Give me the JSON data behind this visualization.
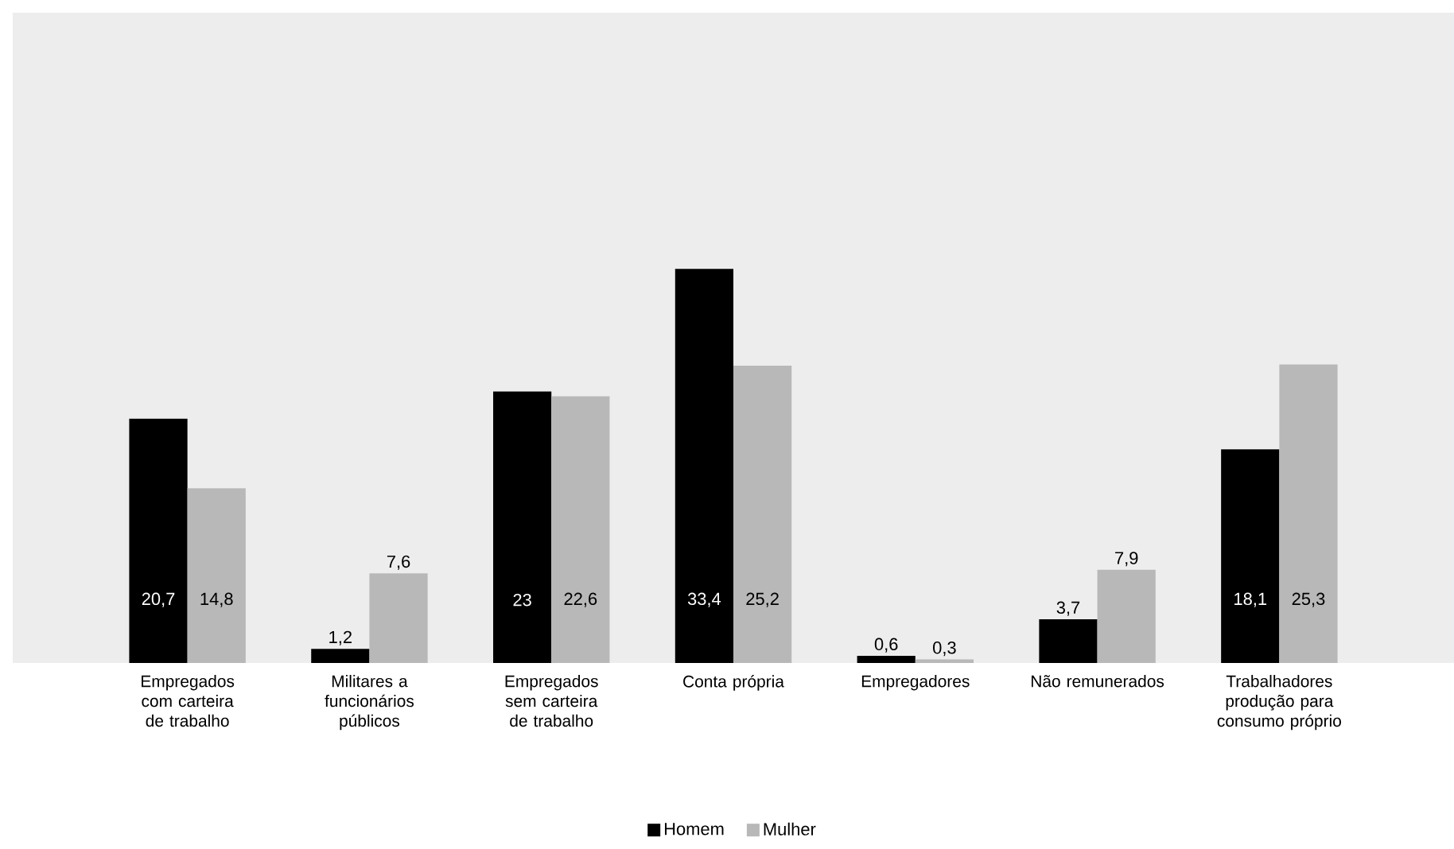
{
  "chart_data": {
    "type": "bar",
    "categories": [
      "Empregados com carteira de trabalho",
      "Militares a funcionários públicos",
      "Empregados sem carteira de trabalho",
      "Conta própria",
      "Empregadores",
      "Não remunerados",
      "Trabalhadores produção para consumo próprio"
    ],
    "series": [
      {
        "name": "Homem",
        "color": "#000000",
        "values": [
          20.7,
          1.2,
          23,
          33.4,
          0.6,
          3.7,
          18.1
        ],
        "value_labels": [
          "20,7",
          "1,2",
          "23",
          "33,4",
          "0,6",
          "3,7",
          "18,1"
        ]
      },
      {
        "name": "Mulher",
        "color": "#b8b8b8",
        "values": [
          14.8,
          7.6,
          22.6,
          25.2,
          0.3,
          7.9,
          25.3
        ],
        "value_labels": [
          "14,8",
          "7,6",
          "22,6",
          "25,2",
          "0,3",
          "7,9",
          "25,3"
        ]
      }
    ],
    "legend": "bottom"
  }
}
